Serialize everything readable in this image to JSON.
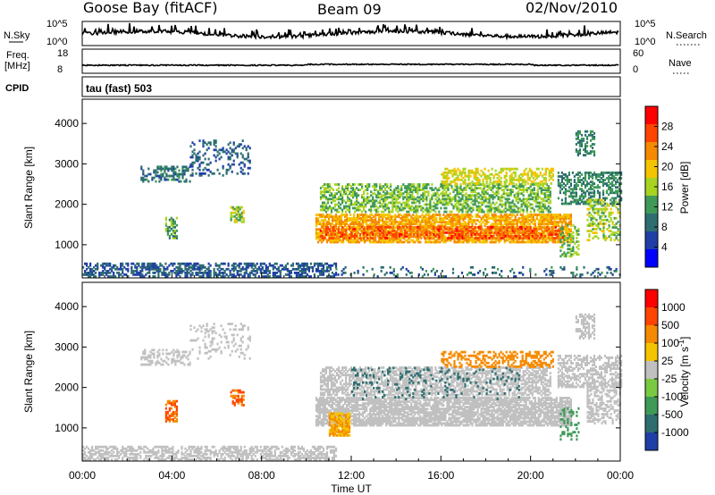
{
  "header": {
    "station": "Goose Bay (fitACF)",
    "beam": "Beam 09",
    "date": "02/Nov/2010"
  },
  "top_panels": {
    "nsky_label": "N.Sky",
    "nsky_ticks": [
      "10^5",
      "10^0"
    ],
    "nsearch_label": "N.Search",
    "nsearch_ticks": [
      "10^5",
      "10^0"
    ],
    "freq_label": "Freq.",
    "freq_unit": "[MHz]",
    "freq_ticks": [
      "18",
      "8"
    ],
    "nave_label": "Nave",
    "nave_ticks": [
      "60",
      "0"
    ],
    "cpid_label": "CPID",
    "cpid_text": "tau (fast) 503"
  },
  "chart_data": [
    {
      "type": "heatmap",
      "name": "power",
      "ylabel": "Slant Range [km]",
      "yticks": [
        1000,
        2000,
        3000,
        4000
      ],
      "ylim": [
        180,
        4600
      ],
      "colorbar_label": "Power [dB]",
      "colorbar_ticks": [
        "4",
        "8",
        "12",
        "16",
        "20",
        "24",
        "28"
      ],
      "colorbar_colors": [
        "#0000ff",
        "#1f3fa6",
        "#2e6e70",
        "#3f9a58",
        "#a8d421",
        "#f5c400",
        "#f58a00",
        "#ff4400",
        "#ff0000"
      ],
      "regions": [
        {
          "t": [
            0.0,
            11.3
          ],
          "r": [
            200,
            550
          ],
          "v": 6,
          "d": 0.55
        },
        {
          "t": [
            2.6,
            4.8
          ],
          "r": [
            2550,
            2950
          ],
          "v": 8,
          "d": 0.45
        },
        {
          "t": [
            4.8,
            7.5
          ],
          "r": [
            2700,
            3600
          ],
          "v": 6,
          "d": 0.25
        },
        {
          "t": [
            3.7,
            4.2
          ],
          "r": [
            1150,
            1650
          ],
          "v": 12,
          "d": 0.5
        },
        {
          "t": [
            6.6,
            7.2
          ],
          "r": [
            1550,
            1950
          ],
          "v": 16,
          "d": 0.6
        },
        {
          "t": [
            10.4,
            21.8
          ],
          "r": [
            1050,
            1750
          ],
          "v": 22,
          "d": 0.75
        },
        {
          "t": [
            10.6,
            21.4
          ],
          "r": [
            1150,
            1450
          ],
          "v": 27,
          "d": 0.55
        },
        {
          "t": [
            10.6,
            20.9
          ],
          "r": [
            1800,
            2500
          ],
          "v": 14,
          "d": 0.55
        },
        {
          "t": [
            16.0,
            21.0
          ],
          "r": [
            2500,
            2900
          ],
          "v": 18,
          "d": 0.5
        },
        {
          "t": [
            21.2,
            24.0
          ],
          "r": [
            2000,
            2800
          ],
          "v": 10,
          "d": 0.5
        },
        {
          "t": [
            21.3,
            22.1
          ],
          "r": [
            700,
            1500
          ],
          "v": 14,
          "d": 0.35
        },
        {
          "t": [
            22.5,
            24.0
          ],
          "r": [
            1100,
            2100
          ],
          "v": 16,
          "d": 0.4
        },
        {
          "t": [
            22.0,
            22.8
          ],
          "r": [
            3200,
            3800
          ],
          "v": 10,
          "d": 0.5
        },
        {
          "t": [
            11.3,
            24.0
          ],
          "r": [
            200,
            450
          ],
          "v": 8,
          "d": 0.15
        }
      ]
    },
    {
      "type": "heatmap",
      "name": "velocity",
      "ylabel": "Slant Range [km]",
      "yticks": [
        1000,
        2000,
        3000,
        4000
      ],
      "ylim": [
        180,
        4600
      ],
      "colorbar_label": "Velocity [m s^-1]",
      "colorbar_ticks": [
        "1000",
        "500",
        "100",
        "25",
        "-25",
        "-100",
        "-500",
        "-1000"
      ],
      "colorbar_colors": [
        "#1f3fa6",
        "#2e6e70",
        "#3f9a58",
        "#7ac943",
        "#c0c0c0",
        "#f5c400",
        "#f58a00",
        "#ff4400",
        "#ff0000"
      ],
      "xlabel": "Time UT",
      "xticks": [
        "00:00",
        "04:00",
        "08:00",
        "12:00",
        "16:00",
        "20:00",
        "00:00"
      ],
      "xlim": [
        0,
        24
      ],
      "regions": [
        {
          "t": [
            0.0,
            11.3
          ],
          "r": [
            200,
            550
          ],
          "v": 0,
          "d": 0.55
        },
        {
          "t": [
            2.6,
            4.8
          ],
          "r": [
            2550,
            2950
          ],
          "v": 0,
          "d": 0.45
        },
        {
          "t": [
            4.8,
            7.5
          ],
          "r": [
            2700,
            3600
          ],
          "v": 0,
          "d": 0.2
        },
        {
          "t": [
            3.7,
            4.2
          ],
          "r": [
            1150,
            1650
          ],
          "v": -300,
          "d": 0.5
        },
        {
          "t": [
            6.6,
            7.2
          ],
          "r": [
            1550,
            1950
          ],
          "v": -300,
          "d": 0.6
        },
        {
          "t": [
            10.4,
            21.8
          ],
          "r": [
            1050,
            1750
          ],
          "v": 0,
          "d": 0.8
        },
        {
          "t": [
            11.0,
            11.9
          ],
          "r": [
            800,
            1350
          ],
          "v": -100,
          "d": 0.85
        },
        {
          "t": [
            10.6,
            20.9
          ],
          "r": [
            1800,
            2500
          ],
          "v": 0,
          "d": 0.6
        },
        {
          "t": [
            12.0,
            19.5
          ],
          "r": [
            1700,
            2500
          ],
          "v": 120,
          "d": 0.12
        },
        {
          "t": [
            16.0,
            21.0
          ],
          "r": [
            2500,
            2900
          ],
          "v": -200,
          "d": 0.45
        },
        {
          "t": [
            21.2,
            24.0
          ],
          "r": [
            2000,
            2800
          ],
          "v": 0,
          "d": 0.55
        },
        {
          "t": [
            21.3,
            22.1
          ],
          "r": [
            700,
            1500
          ],
          "v": 60,
          "d": 0.3
        },
        {
          "t": [
            22.5,
            24.0
          ],
          "r": [
            1100,
            2100
          ],
          "v": 0,
          "d": 0.4
        },
        {
          "t": [
            22.0,
            22.8
          ],
          "r": [
            3200,
            3800
          ],
          "v": 0,
          "d": 0.5
        }
      ]
    }
  ]
}
